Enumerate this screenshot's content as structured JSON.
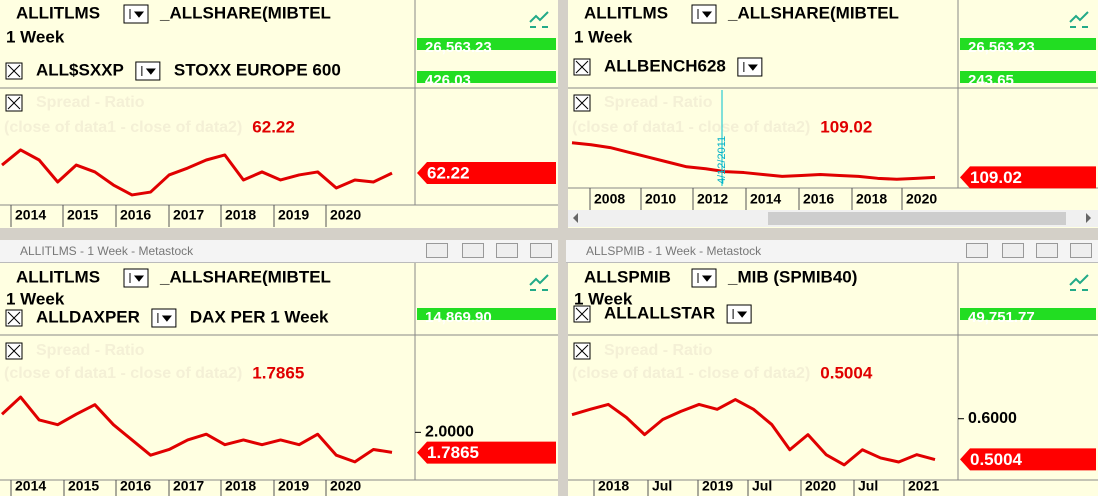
{
  "panels": [
    {
      "symbol": "ALLITLMS",
      "index": "_ALLSHARE(MIBTEL",
      "period": "1 Week",
      "symbol2": "ALL$SXXP",
      "name2": "STOXX EUROPE 600",
      "indicator": "Spread - Ratio",
      "formula": "(close of data1 - close of data2)",
      "value": "62.22",
      "scale_labels": [
        "26,563.23",
        "426.03"
      ],
      "last": "62.22",
      "x_labels": [
        "2014",
        "2015",
        "2016",
        "2017",
        "2018",
        "2019",
        "2020"
      ],
      "line": {
        "ylim": [
          40,
          120
        ],
        "values": [
          67.8,
          78.3,
          71.3,
          56.0,
          67.8,
          63.0,
          53.9,
          47.0,
          49.0,
          60.9,
          65.7,
          71.3,
          74.8,
          57.4,
          63.0,
          57.4,
          60.9,
          63.0,
          51.8,
          57.4,
          56.0,
          62.2
        ]
      }
    },
    {
      "symbol": "ALLITLMS",
      "index": "_ALLSHARE(MIBTEL",
      "period": "1 Week",
      "symbol2": "ALLBENCH628",
      "indicator": "Spread - Ratio",
      "formula": "(close of data1 - close of data2)",
      "value": "109.02",
      "scale_labels": [
        "26,563.23",
        "243.65"
      ],
      "last": "109.02",
      "annotation": "4/12/2011",
      "x_labels": [
        "2008",
        "2010",
        "2012",
        "2014",
        "2016",
        "2018",
        "2020"
      ],
      "line": {
        "ylim": [
          100,
          200
        ],
        "values": [
          145,
          143,
          140,
          135,
          130,
          125,
          120,
          118,
          115,
          114,
          112,
          110,
          111,
          112,
          111,
          110,
          108,
          107,
          108,
          109
        ]
      }
    },
    {
      "window_title": "ALLITLMS - 1 Week - Metastock",
      "symbol": "ALLITLMS",
      "index": "_ALLSHARE(MIBTEL",
      "period": "1 Week",
      "symbol2": "ALLDAXPER",
      "name2": "DAX PER  1 Week",
      "indicator": "Spread - Ratio",
      "formula": "(close of data1 - close of data2)",
      "value": "1.7865",
      "scale_labels": [
        "14,869.90"
      ],
      "tick": "2.0000",
      "last": "1.7865",
      "x_labels": [
        "2014",
        "2015",
        "2016",
        "2017",
        "2018",
        "2019",
        "2020"
      ],
      "line": {
        "ylim": [
          1.5,
          3.0
        ],
        "values": [
          2.19,
          2.37,
          2.13,
          2.08,
          2.19,
          2.29,
          2.08,
          1.92,
          1.76,
          1.82,
          1.92,
          1.98,
          1.87,
          1.92,
          1.87,
          1.92,
          1.87,
          1.98,
          1.76,
          1.69,
          1.82,
          1.79
        ]
      }
    },
    {
      "window_title": "ALLSPMIB - 1 Week - Metastock",
      "symbol": "ALLSPMIB",
      "index": "_MIB (SPMIB40)",
      "period": "1 Week",
      "symbol2": "ALLALLSTAR",
      "indicator": "Spread - Ratio",
      "formula": "(close of data1 - close of data2)",
      "value": "0.5004",
      "scale_labels": [
        "49,751.77"
      ],
      "tick": "0.6000",
      "last": "0.5004",
      "x_labels": [
        "2018",
        "Jul",
        "2019",
        "Jul",
        "2020",
        "Jul",
        "2021"
      ],
      "line": {
        "ylim": [
          0.45,
          0.8
        ],
        "values": [
          0.61,
          0.623,
          0.635,
          0.603,
          0.561,
          0.598,
          0.618,
          0.635,
          0.623,
          0.647,
          0.623,
          0.586,
          0.524,
          0.561,
          0.512,
          0.487,
          0.524,
          0.504,
          0.494,
          0.512,
          0.5
        ]
      }
    }
  ]
}
